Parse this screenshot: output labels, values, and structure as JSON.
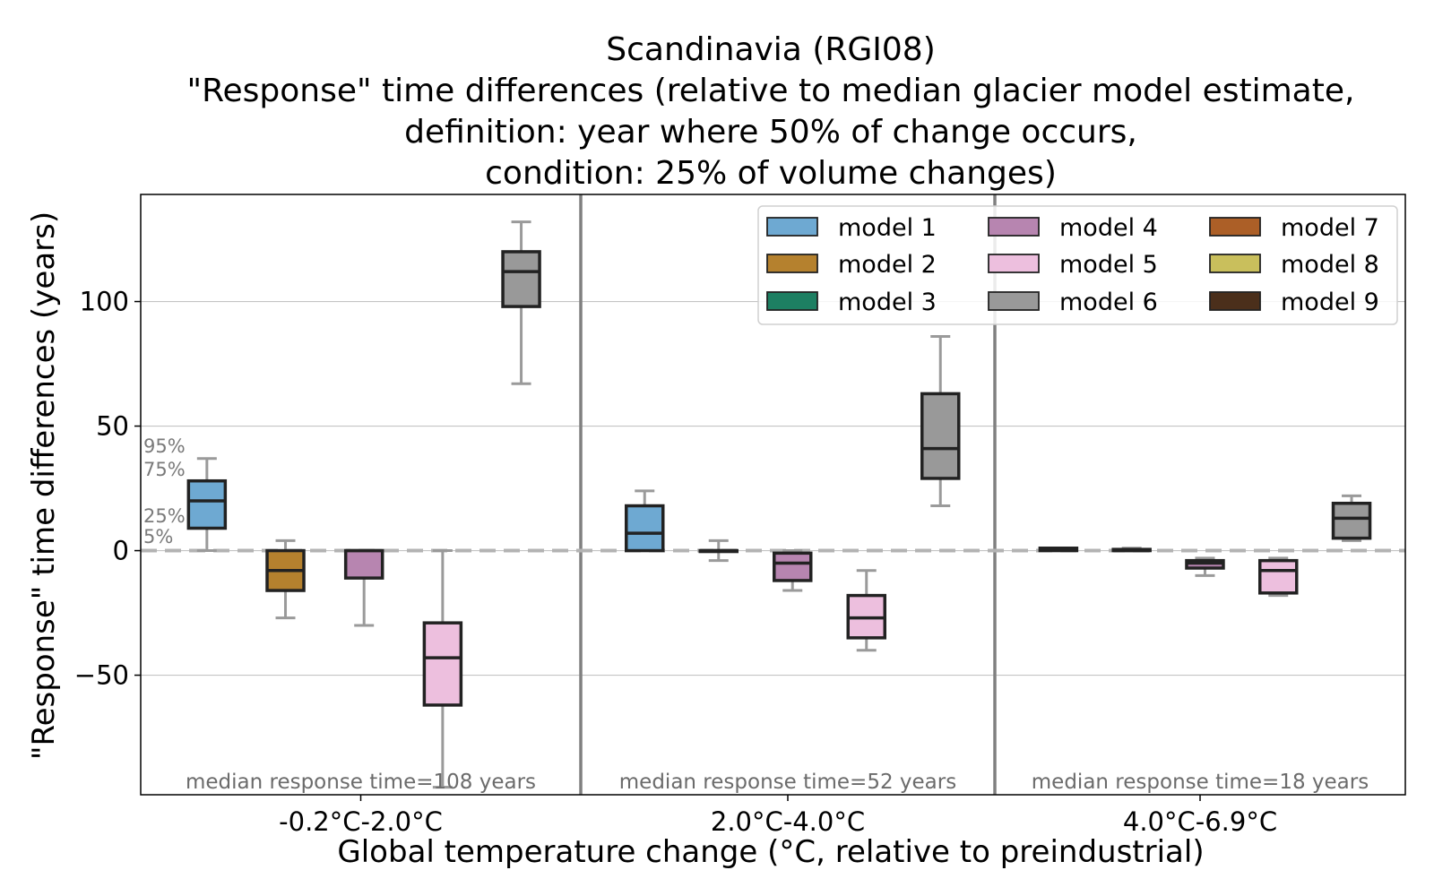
{
  "chart_data": {
    "type": "box",
    "title": [
      "Scandinavia (RGI08)",
      "\"Response\" time differences (relative to median glacier model estimate,",
      "definition: year where 50% of change occurs,",
      "condition: 25% of volume changes)"
    ],
    "xlabel": "Global temperature change (°C, relative to preindustrial)",
    "ylabel": "\"Response\" time differences (years)",
    "ylim": [
      -98,
      143
    ],
    "yticks": [
      -50,
      0,
      50,
      100
    ],
    "ytick_labels": [
      "−50",
      "0",
      "50",
      "100"
    ],
    "grid": true,
    "legend_position": "top-right",
    "categories": [
      "-0.2°C-2.0°C",
      "2.0°C-4.0°C",
      "4.0°C-6.9°C"
    ],
    "annotations": [
      "median response time=108 years",
      "median response time=52 years",
      "median response time=18 years"
    ],
    "percentile_labels": [
      "95%",
      "75%",
      "25%",
      "5%"
    ],
    "series": [
      {
        "name": "model 1",
        "color": "#6ea9d2",
        "boxes": [
          {
            "group": 0,
            "slot": 1,
            "whislo": 0,
            "q1": 9,
            "med": 20,
            "q3": 28,
            "whishi": 37
          },
          {
            "group": 1,
            "slot": 1,
            "whislo": 0,
            "q1": 0,
            "med": 7,
            "q3": 18,
            "whishi": 24
          },
          {
            "group": 2,
            "slot": 1,
            "whislo": 0,
            "q1": 0,
            "med": 0.5,
            "q3": 1,
            "whishi": 1
          }
        ]
      },
      {
        "name": "model 2",
        "color": "#b5812e",
        "boxes": [
          {
            "group": 0,
            "slot": 2,
            "whislo": -27,
            "q1": -16,
            "med": -8,
            "q3": 0,
            "whishi": 4
          },
          {
            "group": 1,
            "slot": 2,
            "whislo": -4,
            "q1": 0,
            "med": 0,
            "q3": 0,
            "whishi": 4
          },
          {
            "group": 2,
            "slot": 2,
            "whislo": 0,
            "q1": 0,
            "med": 0,
            "q3": 0.5,
            "whishi": 1
          }
        ]
      },
      {
        "name": "model 3",
        "color": "#1d7f62",
        "boxes": []
      },
      {
        "name": "model 4",
        "color": "#b785b0",
        "boxes": [
          {
            "group": 0,
            "slot": 3,
            "whislo": -30,
            "q1": -11,
            "med": 0,
            "q3": 0,
            "whishi": 0
          },
          {
            "group": 1,
            "slot": 3,
            "whislo": -16,
            "q1": -12,
            "med": -5,
            "q3": -1,
            "whishi": 0
          },
          {
            "group": 2,
            "slot": 3,
            "whislo": -10,
            "q1": -7,
            "med": -5,
            "q3": -4,
            "whishi": -3
          }
        ]
      },
      {
        "name": "model 5",
        "color": "#edbfde",
        "boxes": [
          {
            "group": 0,
            "slot": 4,
            "whislo": -95,
            "q1": -62,
            "med": -43,
            "q3": -29,
            "whishi": 0
          },
          {
            "group": 1,
            "slot": 4,
            "whislo": -40,
            "q1": -35,
            "med": -27,
            "q3": -18,
            "whishi": -8
          },
          {
            "group": 2,
            "slot": 4,
            "whislo": -18,
            "q1": -17,
            "med": -8,
            "q3": -4,
            "whishi": -3
          }
        ]
      },
      {
        "name": "model 6",
        "color": "#999999",
        "boxes": [
          {
            "group": 0,
            "slot": 5,
            "whislo": 67,
            "q1": 98,
            "med": 112,
            "q3": 120,
            "whishi": 132
          },
          {
            "group": 1,
            "slot": 5,
            "whislo": 18,
            "q1": 29,
            "med": 41,
            "q3": 63,
            "whishi": 86
          },
          {
            "group": 2,
            "slot": 5,
            "whislo": 4,
            "q1": 5,
            "med": 13,
            "q3": 19,
            "whishi": 22
          }
        ]
      },
      {
        "name": "model 7",
        "color": "#ac5f27",
        "boxes": []
      },
      {
        "name": "model 8",
        "color": "#c9bf5c",
        "boxes": []
      },
      {
        "name": "model 9",
        "color": "#4b2f1b",
        "boxes": []
      }
    ]
  }
}
